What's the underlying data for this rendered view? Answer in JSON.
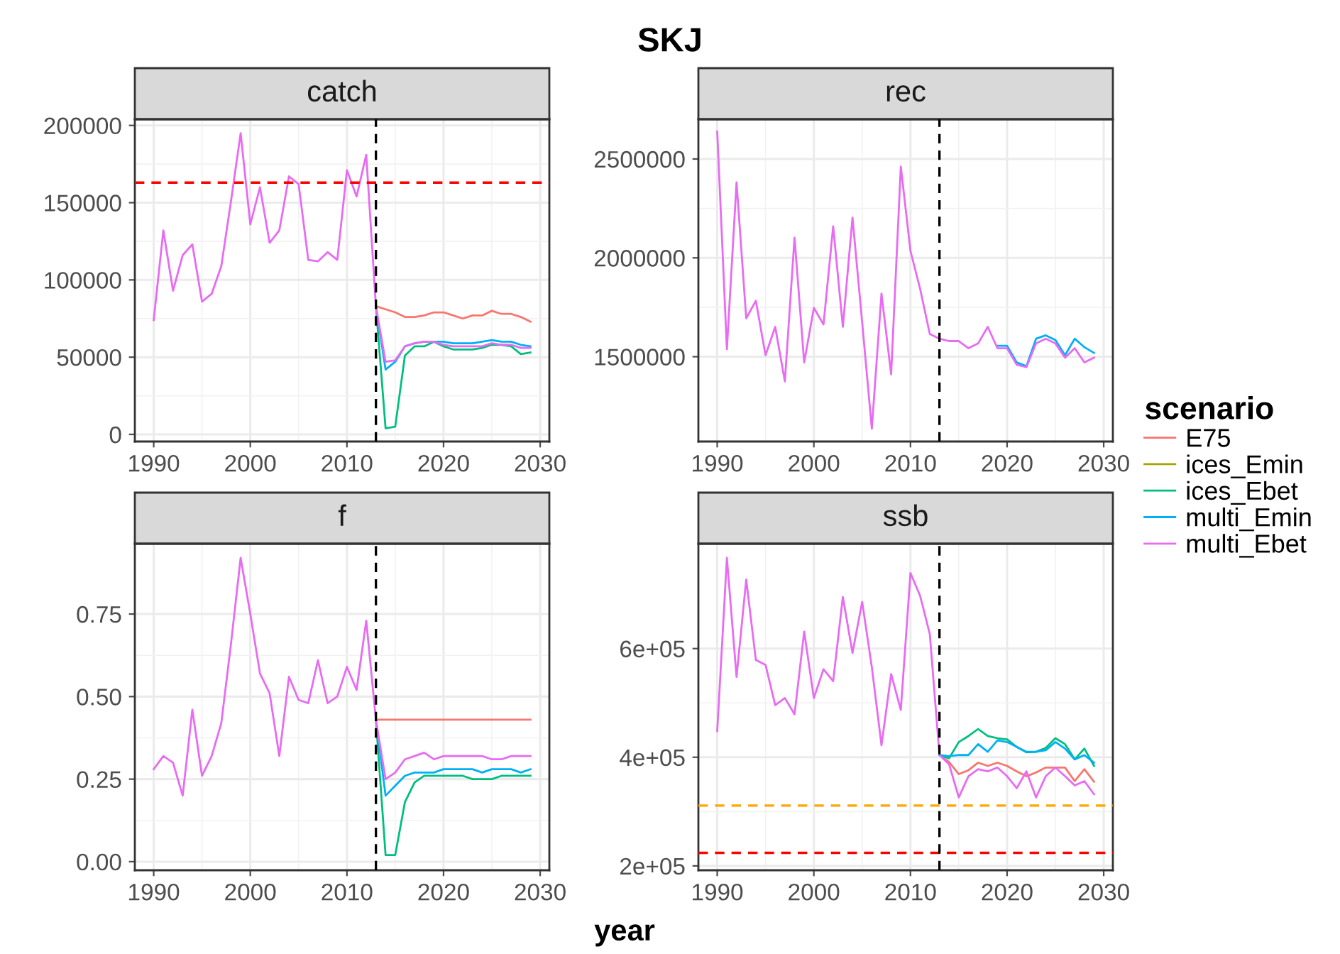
{
  "chart_data": [
    {
      "type": "line",
      "title": "catch",
      "annotations": [
        "SKJ"
      ],
      "legend": "right",
      "legend_title": "scenario",
      "x": [
        1990,
        1991,
        1992,
        1993,
        1994,
        1995,
        1996,
        1997,
        1998,
        1999,
        2000,
        2001,
        2002,
        2003,
        2004,
        2005,
        2006,
        2007,
        2008,
        2009,
        2010,
        2011,
        2012,
        2013,
        2014,
        2015,
        2016,
        2017,
        2018,
        2019,
        2020,
        2021,
        2022,
        2023,
        2024,
        2025,
        2026,
        2027,
        2028,
        2029
      ],
      "xlim": [
        1988.05,
        2030.95
      ],
      "xticks": [
        1990,
        2000,
        2010,
        2020,
        2030
      ],
      "ylim": [
        -4600,
        204000
      ],
      "yticks": [
        0,
        50000,
        100000,
        150000,
        200000
      ],
      "grid": true,
      "ref_lines": [
        {
          "axis": "y",
          "value": 163000,
          "color": "#ff0000",
          "line_style": "dashed"
        },
        {
          "axis": "x",
          "value": 2013,
          "color": "#000000",
          "line_style": "dashed"
        }
      ],
      "series": [
        {
          "name": "E75",
          "color": "#f8766d",
          "x": [
            2013,
            2014,
            2015,
            2016,
            2017,
            2018,
            2019,
            2020,
            2021,
            2022,
            2023,
            2024,
            2025,
            2026,
            2027,
            2028,
            2029
          ],
          "values": [
            83000,
            81000,
            79000,
            76000,
            76000,
            77000,
            79000,
            79000,
            77000,
            75000,
            77000,
            77000,
            80000,
            78000,
            78000,
            76000,
            73000
          ]
        },
        {
          "name": "ices_Emin",
          "color": "#a3a500",
          "values": [
            null,
            null,
            null,
            null,
            null,
            null,
            null,
            null,
            null,
            null,
            null,
            null,
            null,
            null,
            null,
            null,
            null,
            null,
            null,
            null,
            null,
            null,
            null,
            null,
            null,
            null,
            null,
            null,
            null,
            null,
            null,
            null,
            null,
            null,
            null,
            null,
            null,
            null,
            null,
            null
          ]
        },
        {
          "name": "ices_Ebet",
          "color": "#00bf7d",
          "x": [
            2013,
            2014,
            2015,
            2016,
            2017,
            2018,
            2019,
            2020,
            2021,
            2022,
            2023,
            2024,
            2025,
            2026,
            2027,
            2028,
            2029
          ],
          "values": [
            83000,
            4000,
            5000,
            51000,
            57000,
            57000,
            60000,
            57000,
            55000,
            55000,
            55000,
            56000,
            58000,
            58000,
            57000,
            52000,
            53000
          ]
        },
        {
          "name": "multi_Emin",
          "color": "#00b0f6",
          "x": [
            2013,
            2014,
            2015,
            2016,
            2017,
            2018,
            2019,
            2020,
            2021,
            2022,
            2023,
            2024,
            2025,
            2026,
            2027,
            2028,
            2029
          ],
          "values": [
            83000,
            42000,
            47000,
            57000,
            59000,
            60000,
            60000,
            60000,
            59000,
            59000,
            59000,
            60000,
            61000,
            60000,
            60000,
            58000,
            57000
          ]
        },
        {
          "name": "multi_Ebet",
          "color": "#e76bf3",
          "values": [
            74000,
            132000,
            93000,
            116000,
            123000,
            86000,
            91000,
            109000,
            151000,
            195000,
            136000,
            160000,
            124000,
            132000,
            167000,
            162000,
            113000,
            112000,
            118000,
            113000,
            171000,
            154000,
            181000,
            83000,
            47000,
            48000,
            57000,
            59000,
            60000,
            60000,
            58000,
            57000,
            57000,
            57000,
            57000,
            59000,
            58000,
            58000,
            56000,
            56000
          ]
        }
      ]
    },
    {
      "type": "line",
      "title": "rec",
      "x": [
        1990,
        1991,
        1992,
        1993,
        1994,
        1995,
        1996,
        1997,
        1998,
        1999,
        2000,
        2001,
        2002,
        2003,
        2004,
        2005,
        2006,
        2007,
        2008,
        2009,
        2010,
        2011,
        2012,
        2013,
        2014,
        2015,
        2016,
        2017,
        2018,
        2019,
        2020,
        2021,
        2022,
        2023,
        2024,
        2025,
        2026,
        2027,
        2028,
        2029
      ],
      "xlim": [
        1988.05,
        2030.95
      ],
      "xticks": [
        1990,
        2000,
        2010,
        2020,
        2030
      ],
      "ylim": [
        1071000,
        2701000
      ],
      "yticks": [
        1500000,
        2000000,
        2500000
      ],
      "grid": true,
      "ref_lines": [
        {
          "axis": "x",
          "value": 2013,
          "color": "#000000",
          "line_style": "dashed"
        }
      ],
      "series": [
        {
          "color": "#00b0f6",
          "x": [
            2019,
            2020,
            2021,
            2022,
            2023,
            2024,
            2025,
            2026,
            2027,
            2028,
            2029
          ],
          "values": [
            1555000,
            1555000,
            1471000,
            1452000,
            1591000,
            1608000,
            1584000,
            1507000,
            1591000,
            1548000,
            1519000
          ]
        },
        {
          "color": "#e76bf3",
          "values": [
            2639000,
            1538000,
            2382000,
            1694000,
            1783000,
            1507000,
            1651000,
            1375000,
            2102000,
            1471000,
            1747000,
            1663000,
            2159000,
            1651000,
            2203000,
            1675000,
            1136000,
            1819000,
            1411000,
            2462000,
            2035000,
            1843000,
            1615000,
            1591000,
            1579000,
            1579000,
            1543000,
            1567000,
            1651000,
            1543000,
            1543000,
            1459000,
            1447000,
            1567000,
            1591000,
            1567000,
            1495000,
            1543000,
            1471000,
            1495000
          ]
        }
      ]
    },
    {
      "type": "line",
      "title": "f",
      "x": [
        1990,
        1991,
        1992,
        1993,
        1994,
        1995,
        1996,
        1997,
        1998,
        1999,
        2000,
        2001,
        2002,
        2003,
        2004,
        2005,
        2006,
        2007,
        2008,
        2009,
        2010,
        2011,
        2012,
        2013,
        2014,
        2015,
        2016,
        2017,
        2018,
        2019,
        2020,
        2021,
        2022,
        2023,
        2024,
        2025,
        2026,
        2027,
        2028,
        2029
      ],
      "xlim": [
        1988.05,
        2030.95
      ],
      "xticks": [
        1990,
        2000,
        2010,
        2020,
        2030
      ],
      "ylim": [
        -0.026,
        0.963
      ],
      "yticks": [
        {
          "value": 0,
          "label": "0.00"
        },
        {
          "value": 0.25,
          "label": "0.25"
        },
        {
          "value": 0.5,
          "label": "0.50"
        },
        {
          "value": 0.75,
          "label": "0.75"
        }
      ],
      "grid": true,
      "ref_lines": [
        {
          "axis": "x",
          "value": 2013,
          "color": "#000000",
          "line_style": "dashed"
        }
      ],
      "series": [
        {
          "color": "#f8766d",
          "x": [
            2013,
            2014,
            2015,
            2016,
            2017,
            2018,
            2019,
            2020,
            2021,
            2022,
            2023,
            2024,
            2025,
            2026,
            2027,
            2028,
            2029
          ],
          "values": [
            0.43,
            0.43,
            0.43,
            0.43,
            0.43,
            0.43,
            0.43,
            0.43,
            0.43,
            0.43,
            0.43,
            0.43,
            0.43,
            0.43,
            0.43,
            0.43,
            0.43
          ]
        },
        {
          "color": "#00bf7d",
          "x": [
            2013,
            2014,
            2015,
            2016,
            2017,
            2018,
            2019,
            2020,
            2021,
            2022,
            2023,
            2024,
            2025,
            2026,
            2027,
            2028,
            2029
          ],
          "values": [
            0.43,
            0.02,
            0.02,
            0.18,
            0.24,
            0.26,
            0.26,
            0.26,
            0.26,
            0.26,
            0.25,
            0.25,
            0.25,
            0.26,
            0.26,
            0.26,
            0.26
          ]
        },
        {
          "color": "#00b0f6",
          "x": [
            2013,
            2014,
            2015,
            2016,
            2017,
            2018,
            2019,
            2020,
            2021,
            2022,
            2023,
            2024,
            2025,
            2026,
            2027,
            2028,
            2029
          ],
          "values": [
            0.43,
            0.2,
            0.23,
            0.26,
            0.27,
            0.27,
            0.27,
            0.28,
            0.28,
            0.28,
            0.28,
            0.27,
            0.28,
            0.28,
            0.28,
            0.27,
            0.28
          ]
        },
        {
          "color": "#e76bf3",
          "values": [
            0.28,
            0.32,
            0.3,
            0.2,
            0.46,
            0.26,
            0.32,
            0.42,
            0.66,
            0.92,
            0.75,
            0.57,
            0.51,
            0.32,
            0.56,
            0.49,
            0.48,
            0.61,
            0.48,
            0.5,
            0.59,
            0.52,
            0.73,
            0.43,
            0.25,
            0.27,
            0.31,
            0.32,
            0.33,
            0.31,
            0.32,
            0.32,
            0.32,
            0.32,
            0.32,
            0.31,
            0.31,
            0.32,
            0.32,
            0.32
          ]
        }
      ]
    },
    {
      "type": "line",
      "title": "ssb",
      "xlabel": "year",
      "x": [
        1990,
        1991,
        1992,
        1993,
        1994,
        1995,
        1996,
        1997,
        1998,
        1999,
        2000,
        2001,
        2002,
        2003,
        2004,
        2005,
        2006,
        2007,
        2008,
        2009,
        2010,
        2011,
        2012,
        2013,
        2014,
        2015,
        2016,
        2017,
        2018,
        2019,
        2020,
        2021,
        2022,
        2023,
        2024,
        2025,
        2026,
        2027,
        2028,
        2029
      ],
      "xlim": [
        1988.05,
        2030.95
      ],
      "xticks": [
        1990,
        2000,
        2010,
        2020,
        2030
      ],
      "ylim": [
        192000,
        793000
      ],
      "yticks": [
        {
          "value": 200000,
          "label": "2e+05"
        },
        {
          "value": 400000,
          "label": "4e+05"
        },
        {
          "value": 600000,
          "label": "6e+05"
        }
      ],
      "grid": true,
      "ref_lines": [
        {
          "axis": "y",
          "value": 311000,
          "color": "#ffa500",
          "line_style": "dashed"
        },
        {
          "axis": "y",
          "value": 224000,
          "color": "#ff0000",
          "line_style": "dashed"
        },
        {
          "axis": "x",
          "value": 2013,
          "color": "#000000",
          "line_style": "dashed"
        }
      ],
      "series": [
        {
          "color": "#f8766d",
          "x": [
            2013,
            2014,
            2015,
            2016,
            2017,
            2018,
            2019,
            2020,
            2021,
            2022,
            2023,
            2024,
            2025,
            2026,
            2027,
            2028,
            2029
          ],
          "values": [
            404000,
            391000,
            369000,
            376000,
            390000,
            384000,
            390000,
            384000,
            374000,
            365000,
            372000,
            381000,
            381000,
            381000,
            356000,
            378000,
            355000
          ]
        },
        {
          "color": "#00bf7d",
          "x": [
            2013,
            2014,
            2015,
            2016,
            2017,
            2018,
            2019,
            2020,
            2021,
            2022,
            2023,
            2024,
            2025,
            2026,
            2027,
            2028,
            2029
          ],
          "values": [
            404000,
            398000,
            428000,
            439000,
            452000,
            439000,
            435000,
            433000,
            419000,
            409000,
            410000,
            417000,
            435000,
            424000,
            396000,
            416000,
            384000
          ]
        },
        {
          "color": "#00b0f6",
          "x": [
            2013,
            2014,
            2015,
            2016,
            2017,
            2018,
            2019,
            2020,
            2021,
            2022,
            2023,
            2024,
            2025,
            2026,
            2027,
            2028,
            2029
          ],
          "values": [
            404000,
            402000,
            404000,
            404000,
            424000,
            410000,
            431000,
            428000,
            419000,
            410000,
            410000,
            413000,
            428000,
            416000,
            396000,
            404000,
            390000
          ]
        },
        {
          "color": "#e76bf3",
          "values": [
            448000,
            767000,
            548000,
            727000,
            579000,
            570000,
            496000,
            509000,
            479000,
            631000,
            509000,
            562000,
            540000,
            695000,
            592000,
            686000,
            566000,
            422000,
            553000,
            487000,
            739000,
            697000,
            627000,
            404000,
            387000,
            326000,
            365000,
            378000,
            374000,
            381000,
            365000,
            343000,
            374000,
            326000,
            365000,
            381000,
            365000,
            348000,
            356000,
            332000
          ]
        }
      ]
    }
  ]
}
